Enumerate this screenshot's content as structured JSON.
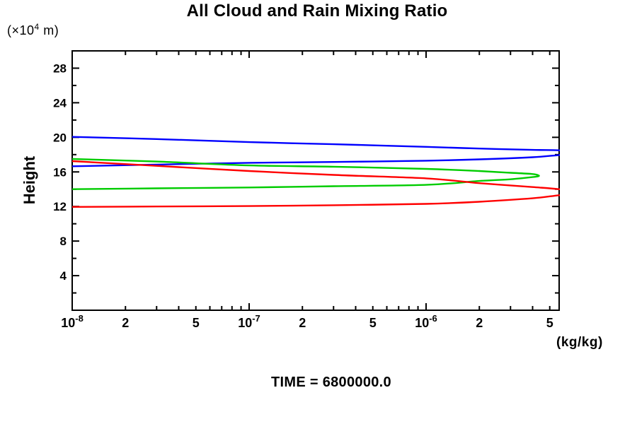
{
  "chart_data": {
    "type": "line",
    "title": "All Cloud and Rain Mixing Ratio",
    "caption": "TIME = 6800000.0",
    "xlabel": "(kg/kg)",
    "ylabel": "Height",
    "ylabel_units": {
      "prefix": "(×10",
      "exp": "4",
      "suffix": " m)"
    },
    "x_scale": "log",
    "xlim": [
      1e-08,
      5.65e-06
    ],
    "ylim": [
      0,
      30
    ],
    "grid": false,
    "legend": "none",
    "axis_color": "#000000",
    "x_ticks": [
      {
        "v": 1e-08,
        "base": "10",
        "exp": "-8",
        "major": true
      },
      {
        "v": 2e-08,
        "label": "2"
      },
      {
        "v": 3e-08
      },
      {
        "v": 4e-08
      },
      {
        "v": 5e-08,
        "label": "5"
      },
      {
        "v": 6e-08
      },
      {
        "v": 7e-08
      },
      {
        "v": 8e-08
      },
      {
        "v": 9e-08
      },
      {
        "v": 1e-07,
        "base": "10",
        "exp": "-7",
        "major": true
      },
      {
        "v": 2e-07,
        "label": "2"
      },
      {
        "v": 3e-07
      },
      {
        "v": 4e-07
      },
      {
        "v": 5e-07,
        "label": "5"
      },
      {
        "v": 6e-07
      },
      {
        "v": 7e-07
      },
      {
        "v": 8e-07
      },
      {
        "v": 9e-07
      },
      {
        "v": 1e-06,
        "base": "10",
        "exp": "-6",
        "major": true
      },
      {
        "v": 2e-06,
        "label": "2"
      },
      {
        "v": 3e-06
      },
      {
        "v": 4e-06
      },
      {
        "v": 5e-06,
        "label": "5"
      }
    ],
    "y_ticks": [
      {
        "v": 2
      },
      {
        "v": 4,
        "label": "4"
      },
      {
        "v": 6
      },
      {
        "v": 8,
        "label": "8"
      },
      {
        "v": 10
      },
      {
        "v": 12,
        "label": "12"
      },
      {
        "v": 14
      },
      {
        "v": 16,
        "label": "16"
      },
      {
        "v": 18
      },
      {
        "v": 20,
        "label": "20"
      },
      {
        "v": 22
      },
      {
        "v": 24,
        "label": "24"
      },
      {
        "v": 26
      },
      {
        "v": 28,
        "label": "28"
      }
    ],
    "series": [
      {
        "name": "blue-profile",
        "color": "#0000ff",
        "points": [
          [
            1e-08,
            16.65
          ],
          [
            3e-08,
            16.85
          ],
          [
            1e-07,
            17.05
          ],
          [
            3e-07,
            17.15
          ],
          [
            1e-06,
            17.3
          ],
          [
            2e-06,
            17.45
          ],
          [
            4e-06,
            17.7
          ],
          [
            5.65e-06,
            17.95
          ],
          [
            8e-06,
            18.2
          ],
          [
            5.65e-06,
            18.5
          ],
          [
            4e-06,
            18.55
          ],
          [
            2e-06,
            18.7
          ],
          [
            1e-06,
            18.9
          ],
          [
            3e-07,
            19.2
          ],
          [
            1e-07,
            19.45
          ],
          [
            3e-08,
            19.8
          ],
          [
            1e-08,
            20.05
          ]
        ]
      },
      {
        "name": "green-profile",
        "color": "#00cc00",
        "points": [
          [
            1e-08,
            14.0
          ],
          [
            3e-08,
            14.1
          ],
          [
            1e-07,
            14.2
          ],
          [
            3e-07,
            14.35
          ],
          [
            1e-06,
            14.5
          ],
          [
            2e-06,
            14.95
          ],
          [
            3e-06,
            15.15
          ],
          [
            4e-06,
            15.4
          ],
          [
            4.35e-06,
            15.55
          ],
          [
            4e-06,
            15.75
          ],
          [
            3e-06,
            15.9
          ],
          [
            2e-06,
            16.1
          ],
          [
            1e-06,
            16.35
          ],
          [
            3e-07,
            16.6
          ],
          [
            1e-07,
            16.75
          ],
          [
            3e-08,
            17.2
          ],
          [
            1e-08,
            17.5
          ]
        ]
      },
      {
        "name": "red-profile",
        "color": "#ff0000",
        "points": [
          [
            1e-08,
            11.95
          ],
          [
            3e-08,
            12.0
          ],
          [
            1e-07,
            12.05
          ],
          [
            3e-07,
            12.15
          ],
          [
            1e-06,
            12.3
          ],
          [
            2e-06,
            12.55
          ],
          [
            4e-06,
            12.95
          ],
          [
            5.65e-06,
            13.3
          ],
          [
            8e-06,
            13.6
          ],
          [
            5.65e-06,
            14.0
          ],
          [
            4e-06,
            14.25
          ],
          [
            2e-06,
            14.7
          ],
          [
            1e-06,
            15.25
          ],
          [
            3e-07,
            15.65
          ],
          [
            1e-07,
            16.1
          ],
          [
            3e-08,
            16.7
          ],
          [
            1e-08,
            17.25
          ]
        ]
      }
    ]
  }
}
